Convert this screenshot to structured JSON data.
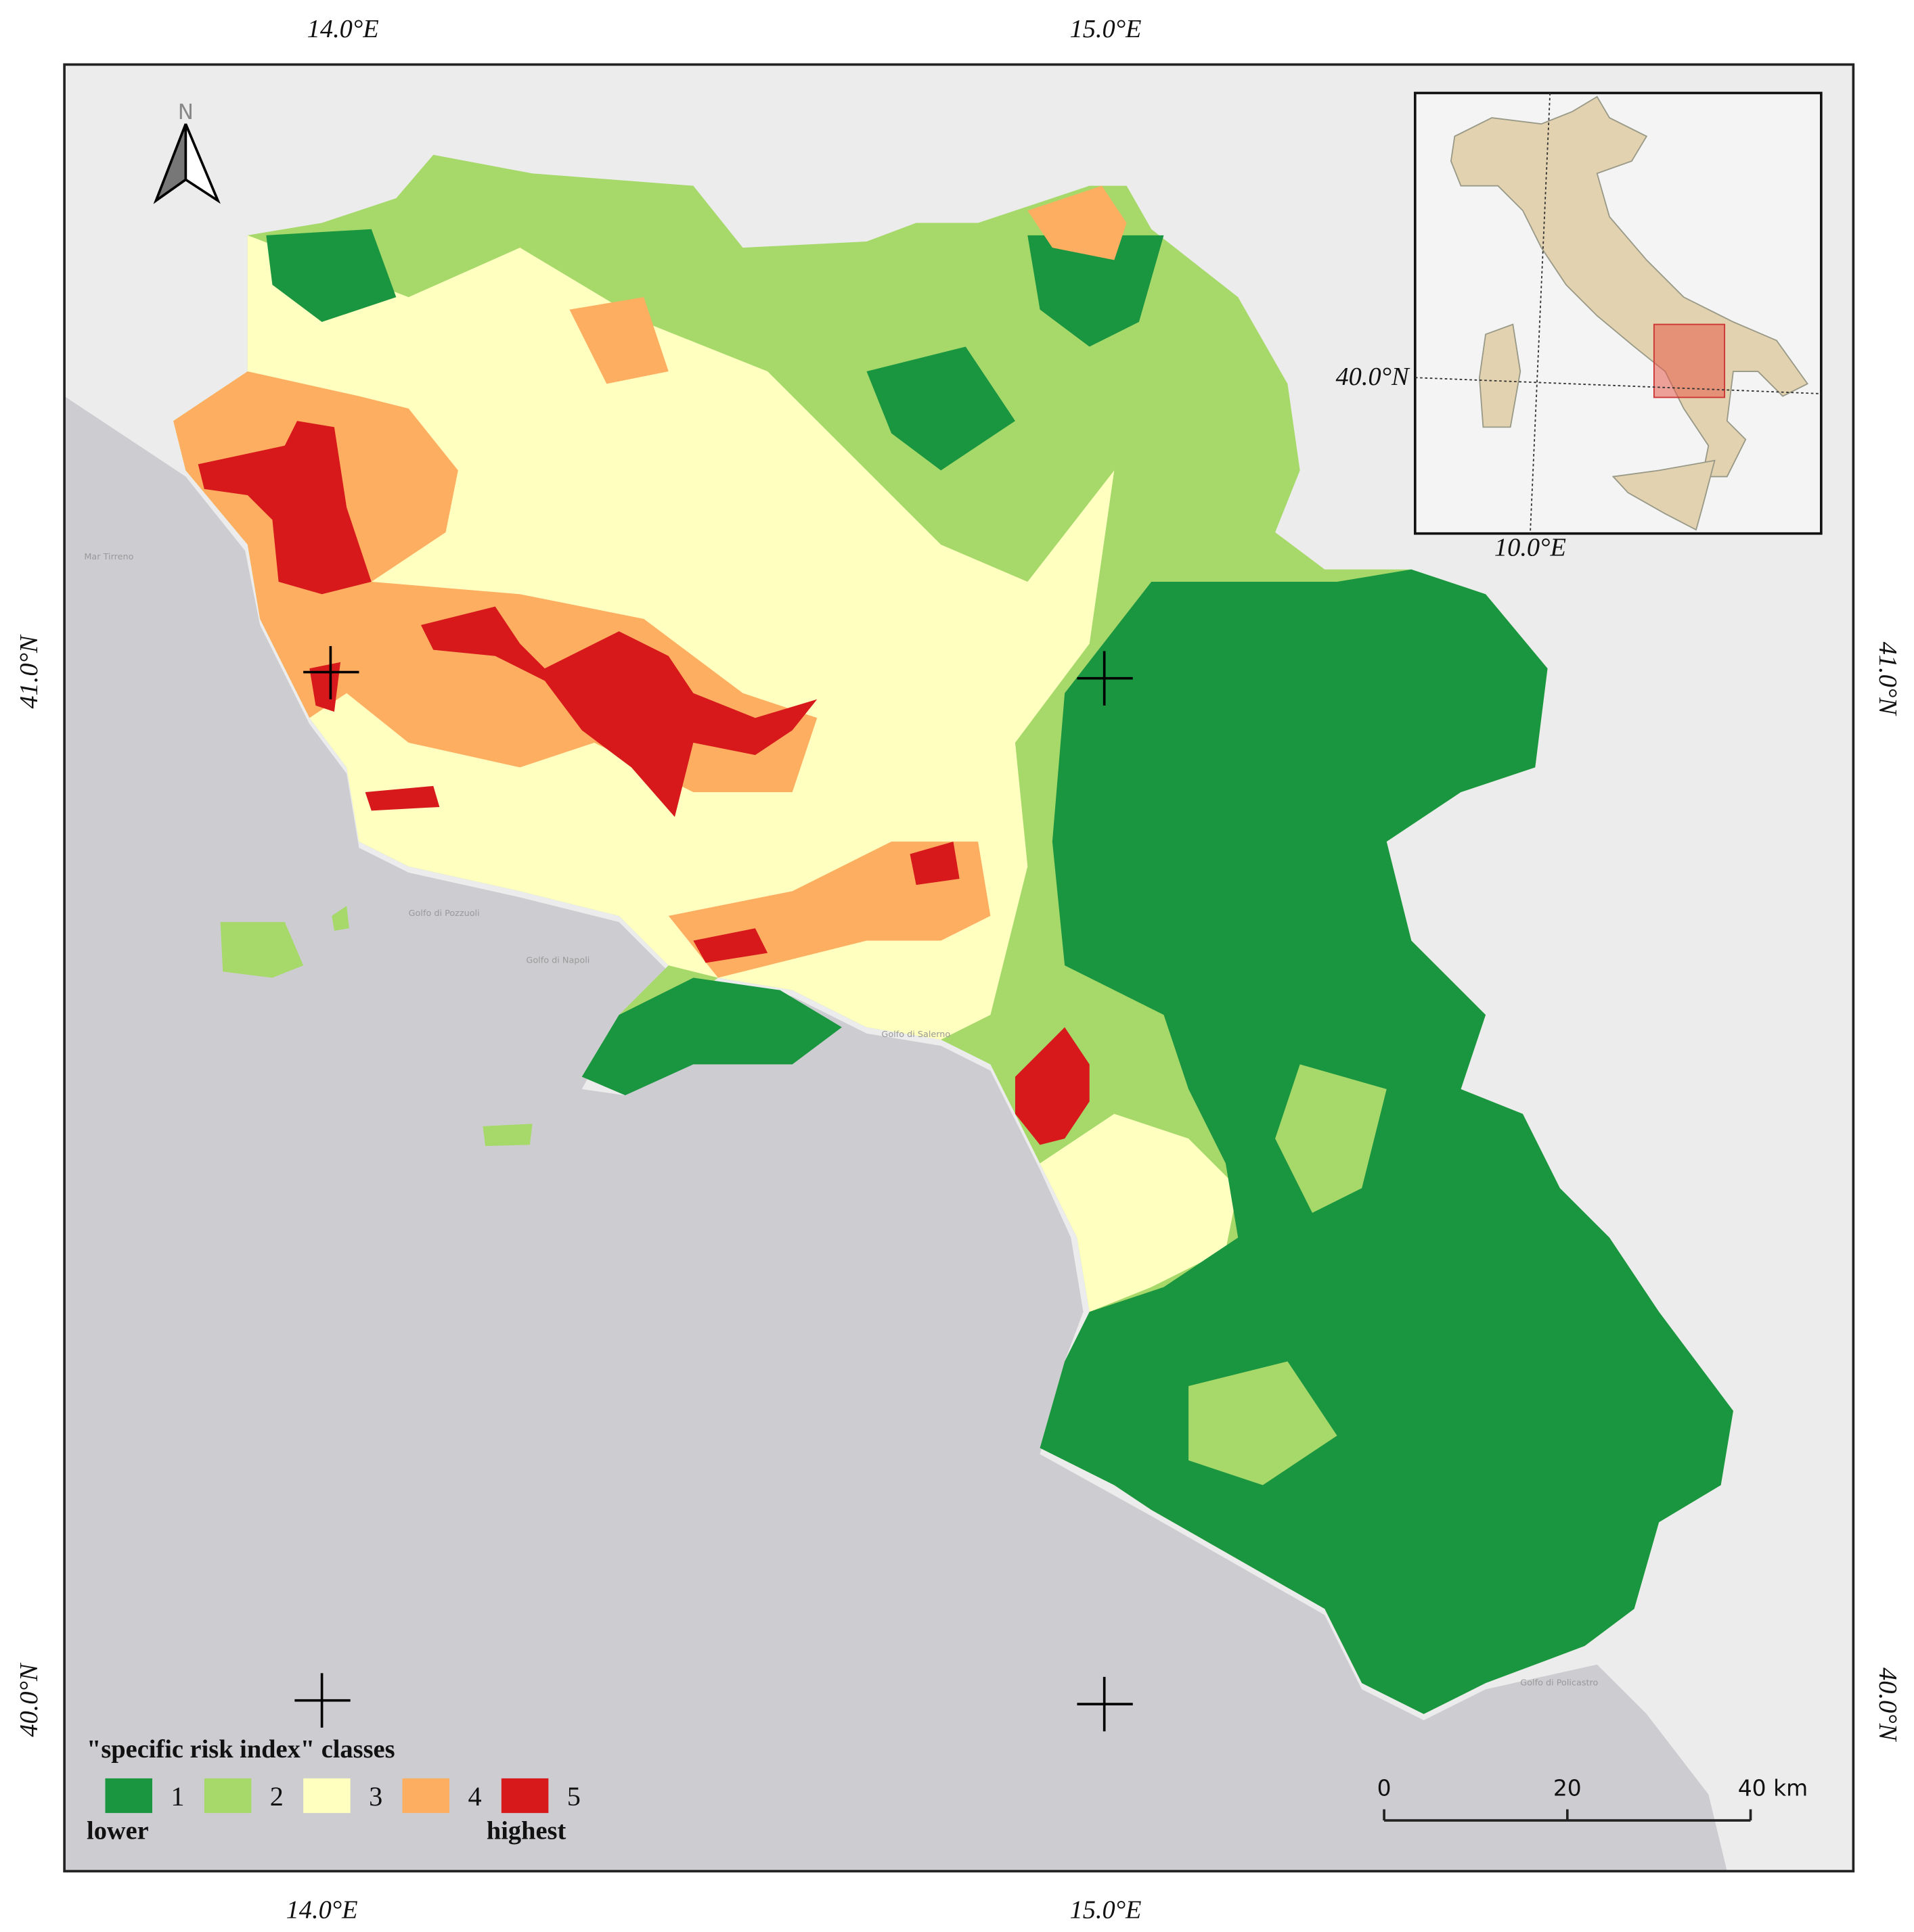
{
  "map": {
    "axis_labels": {
      "top": [
        "14.0°E",
        "15.0°E"
      ],
      "bottom": [
        "14.0°E",
        "15.0°E"
      ],
      "left": [
        "41.0°N",
        "40.0°N"
      ],
      "right": [
        "41.0°N",
        "40.0°N"
      ]
    },
    "north_arrow": "N",
    "sea_labels": [
      "Mar Tirreno",
      "Golfo di Pozzuoli",
      "Golfo di Napoli",
      "Golfo di Salerno",
      "Golfo di Policastro"
    ],
    "inset": {
      "lat_label": "40.0°N",
      "lon_label": "10.0°E"
    },
    "legend": {
      "title": "\"specific risk index\" classes",
      "classes": [
        {
          "label": "1",
          "color": "#1a9641"
        },
        {
          "label": "2",
          "color": "#a6d96a"
        },
        {
          "label": "3",
          "color": "#ffffbf"
        },
        {
          "label": "4",
          "color": "#fdae61"
        },
        {
          "label": "5",
          "color": "#d7191c"
        }
      ],
      "low_label": "lower",
      "high_label": "highest"
    },
    "scale_bar": {
      "ticks": [
        "0",
        "20",
        "40 km"
      ]
    }
  }
}
